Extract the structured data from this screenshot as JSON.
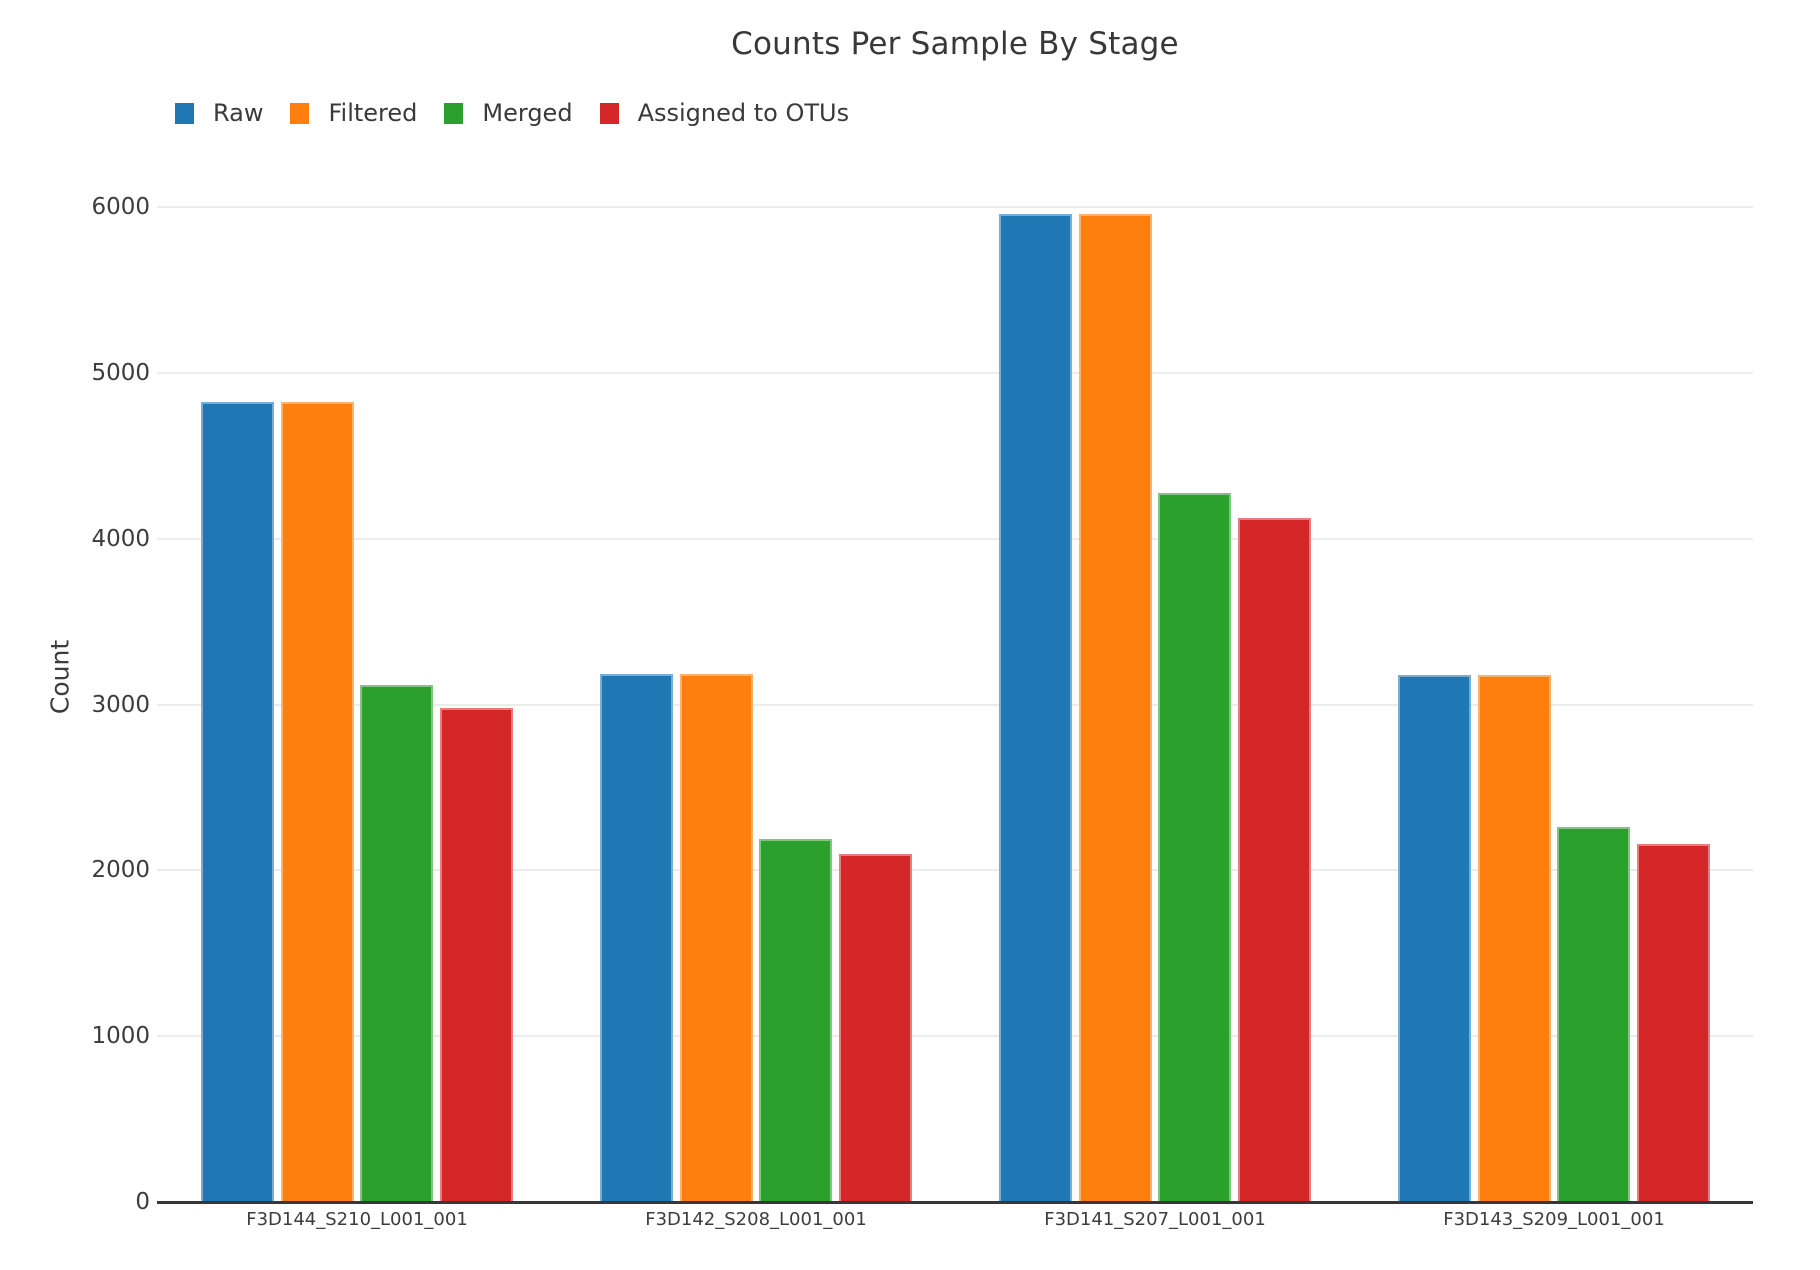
{
  "title": "Counts Per Sample By Stage",
  "legend": {
    "items": [
      {
        "label": "Raw",
        "color": "#1f77b4"
      },
      {
        "label": "Filtered",
        "color": "#ff7f0e"
      },
      {
        "label": "Merged",
        "color": "#2ca02c"
      },
      {
        "label": "Assigned to OTUs",
        "color": "#d62728"
      }
    ]
  },
  "colors": {
    "grid": "#ececec",
    "axis": "#37373a",
    "text": "#3d3d3d"
  },
  "chart_data": {
    "type": "bar",
    "title": "Counts Per Sample By Stage",
    "xlabel": "",
    "ylabel": "Count",
    "grid": "horizontal",
    "legend_position": "top-left",
    "categories": [
      "F3D144_S210_L001_001",
      "F3D142_S208_L001_001",
      "F3D141_S207_L001_001",
      "F3D143_S209_L001_001"
    ],
    "series": [
      {
        "name": "Raw",
        "color": "#1f77b4",
        "edge": "#79add2",
        "values": [
          4827,
          3184,
          5958,
          3178
        ]
      },
      {
        "name": "Filtered",
        "color": "#ff7f0e",
        "edge": "#ffb26e",
        "values": [
          4827,
          3184,
          5958,
          3178
        ]
      },
      {
        "name": "Merged",
        "color": "#2ca02c",
        "edge": "#80c680",
        "values": [
          3118,
          2188,
          4274,
          2260
        ]
      },
      {
        "name": "Assigned to OTUs",
        "color": "#d62728",
        "edge": "#e67d7e",
        "values": [
          2980,
          2098,
          4124,
          2158
        ]
      }
    ],
    "yticks": [
      0,
      1000,
      2000,
      3000,
      4000,
      5000,
      6000
    ],
    "ylim": [
      0,
      6224
    ]
  }
}
